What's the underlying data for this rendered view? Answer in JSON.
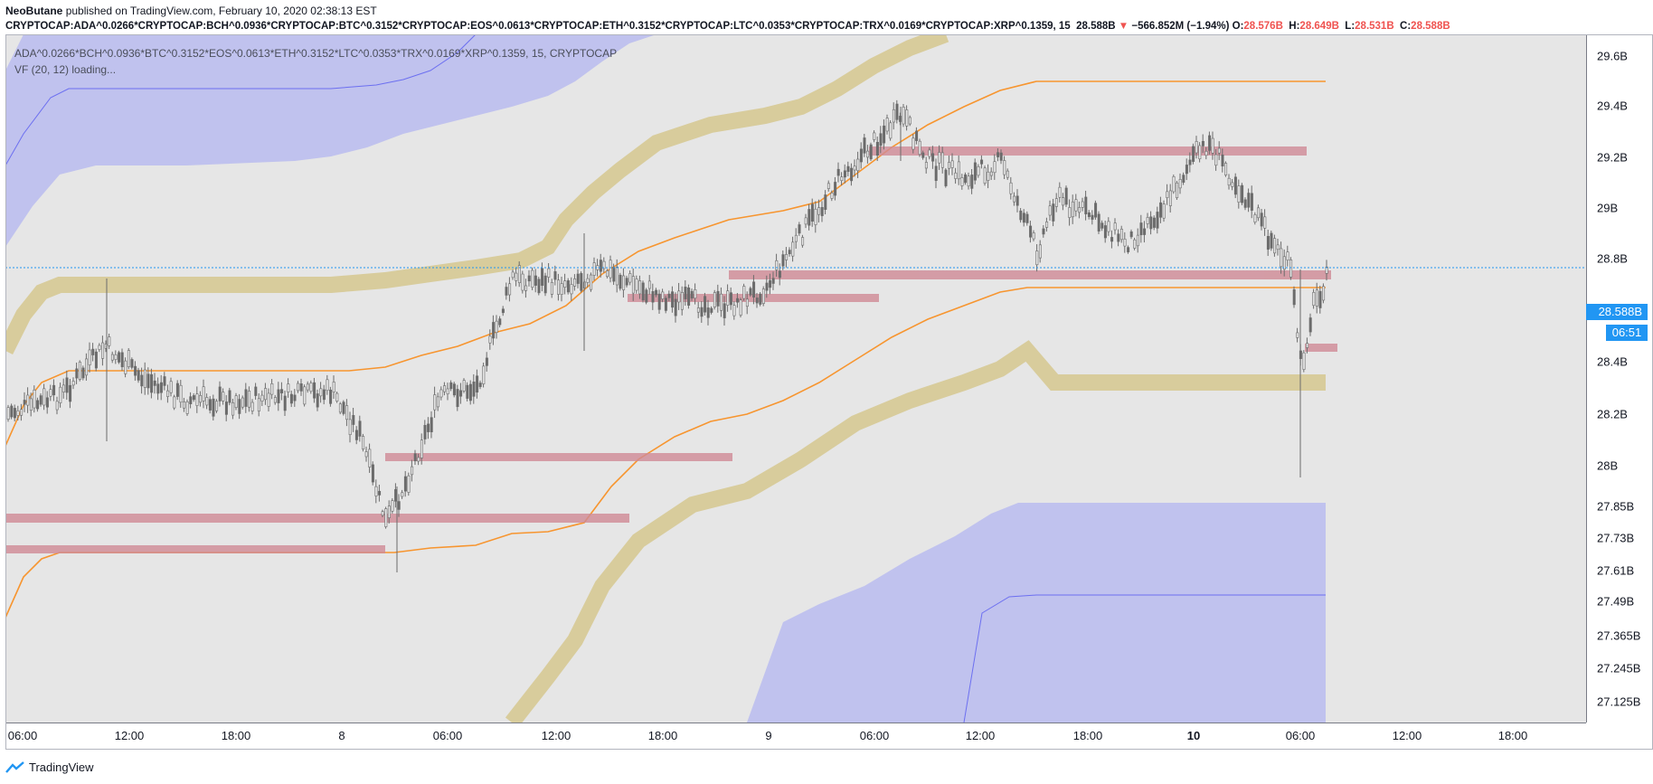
{
  "header": {
    "author": "NeoButane",
    "published": "published on TradingView.com, February 10, 2020 02:38:13 EST"
  },
  "symbol_bar": {
    "symbol": "CRYPTOCAP:ADA^0.0266*CRYPTOCAP:BCH^0.0936*CRYPTOCAP:BTC^0.3152*CRYPTOCAP:EOS^0.0613*CRYPTOCAP:ETH^0.3152*CRYPTOCAP:LTC^0.0353*CRYPTOCAP:TRX^0.0169*CRYPTOCAP:XRP^0.1359, 15",
    "last": "28.588B",
    "change_arrow": "▼",
    "change": "−566.852M (−1.94%)",
    "o_label": "O:",
    "o": "28.576B",
    "h_label": "H:",
    "h": "28.649B",
    "l_label": "L:",
    "l": "28.531B",
    "c_label": "C:",
    "c": "28.588B"
  },
  "legend": {
    "series": "ADA^0.0266*BCH^0.0936*BTC^0.3152*EOS^0.0613*ETH^0.3152*LTC^0.0353*TRX^0.0169*XRP^0.1359, 15, CRYPTOCAP",
    "indicator": "VF  (20, 12) loading..."
  },
  "price_axis": {
    "ticks": [
      "29.6B",
      "29.4B",
      "29.2B",
      "29B",
      "28.8B",
      "28.4B",
      "28.2B",
      "28B",
      "27.85B",
      "27.73B",
      "27.61B",
      "27.49B",
      "27.365B",
      "27.245B",
      "27.125B"
    ],
    "current_price": "28.588B",
    "countdown": "06:51"
  },
  "time_axis": {
    "ticks": [
      "06:00",
      "12:00",
      "18:00",
      "8",
      "06:00",
      "12:00",
      "18:00",
      "9",
      "06:00",
      "12:00",
      "18:00",
      "10",
      "06:00",
      "12:00",
      "18:00"
    ]
  },
  "footer": {
    "brand": "TradingView"
  },
  "colors": {
    "candle": "#6b6b6b",
    "zone_red": "#d08a96",
    "band_gold": "#d8cc9c",
    "band_blue": "#b3b5f0",
    "vwap_orange": "#f7952f",
    "price_line": "#2196f3",
    "down": "#ef5350"
  },
  "chart_data": {
    "type": "candlestick",
    "interval": "15",
    "last_price": 28.588,
    "ohlc": {
      "open": 28.576,
      "high": 28.649,
      "low": 28.531,
      "close": 28.588
    },
    "unit": "B"
  }
}
